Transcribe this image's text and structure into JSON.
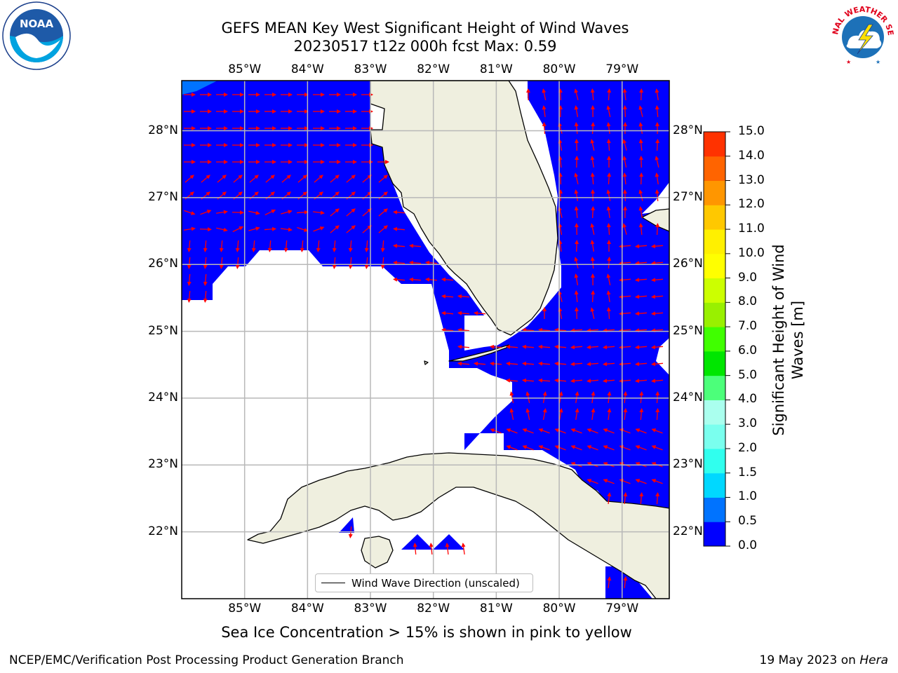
{
  "title": {
    "line1": "GEFS MEAN Key West Significant Height of Wind Waves",
    "line2": "20230517 t12z 000h fcst   Max: 0.59"
  },
  "logos": {
    "left": {
      "text": "NOAA",
      "icon": "noaa-logo-icon"
    },
    "right": {
      "text": "NATIONAL WEATHER SERVICE",
      "icon": "nws-logo-icon"
    }
  },
  "map": {
    "extent": {
      "lon_min": -86.0,
      "lon_max": -78.25,
      "lat_min": 21.0,
      "lat_max": 28.75
    },
    "lon_ticks": [
      {
        "value": -85,
        "label": "85°W"
      },
      {
        "value": -84,
        "label": "84°W"
      },
      {
        "value": -83,
        "label": "83°W"
      },
      {
        "value": -82,
        "label": "82°W"
      },
      {
        "value": -81,
        "label": "81°W"
      },
      {
        "value": -80,
        "label": "80°W"
      },
      {
        "value": -79,
        "label": "79°W"
      }
    ],
    "lat_ticks": [
      {
        "value": 28,
        "label": "28°N"
      },
      {
        "value": 27,
        "label": "27°N"
      },
      {
        "value": 26,
        "label": "26°N"
      },
      {
        "value": 25,
        "label": "25°N"
      },
      {
        "value": 24,
        "label": "24°N"
      },
      {
        "value": 23,
        "label": "23°N"
      },
      {
        "value": 22,
        "label": "22°N"
      }
    ],
    "wave_height_max_m": 0.59,
    "wave_fill_color": "#0000ff",
    "land_color": "#efefdf",
    "arrow_color": "#ff0000",
    "legend_label": "Wind Wave Direction (unscaled)"
  },
  "colorbar": {
    "label": "Significant Height of Wind Waves [m]",
    "label_line1": "Significant Height of Wind",
    "label_line2": "Waves [m]",
    "ticks": [
      "0.0",
      "0.5",
      "1.0",
      "1.5",
      "2.0",
      "3.0",
      "4.0",
      "5.0",
      "6.0",
      "7.0",
      "8.0",
      "9.0",
      "10.0",
      "11.0",
      "12.0",
      "13.0",
      "14.0",
      "15.0"
    ],
    "colors": [
      "#0000ff",
      "#0073ff",
      "#00d8ff",
      "#30ffee",
      "#7affee",
      "#aaffee",
      "#4cff7a",
      "#00e600",
      "#40ff00",
      "#99f000",
      "#ccff00",
      "#ffff00",
      "#fff000",
      "#ffc800",
      "#ff9600",
      "#ff6400",
      "#ff3200",
      "#ff0000"
    ]
  },
  "sea_ice_note": "Sea Ice Concentration > 15% is shown in pink to yellow",
  "footer": {
    "credit": "NCEP/EMC/Verification Post Processing Product Generation Branch",
    "date": "19 May 2023 on",
    "host": "Hera"
  }
}
